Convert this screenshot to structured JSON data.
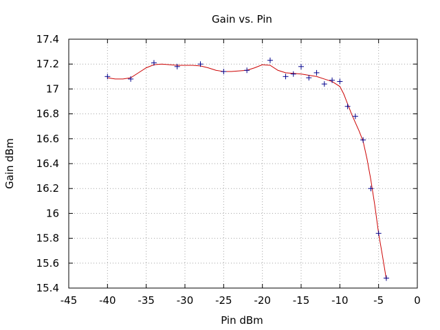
{
  "chart_data": {
    "type": "scatter",
    "title": "Gain vs. Pin",
    "xlabel": "Pin dBm",
    "ylabel": "Gain dBm",
    "xlim": [
      -45,
      0
    ],
    "ylim": [
      15.4,
      17.4
    ],
    "x_ticks": [
      -45,
      -40,
      -35,
      -30,
      -25,
      -20,
      -15,
      -10,
      -5,
      0
    ],
    "y_ticks": [
      15.4,
      15.6,
      15.8,
      16,
      16.2,
      16.4,
      16.6,
      16.8,
      17,
      17.2,
      17.4
    ],
    "grid": true,
    "colors": {
      "points": "#00008b",
      "fit": "#cc0000"
    },
    "series": [
      {
        "kind": "points",
        "marker": "plus",
        "x": [
          -40,
          -37,
          -34,
          -31,
          -28,
          -25,
          -22,
          -19,
          -17,
          -16,
          -15,
          -14,
          -13,
          -12,
          -11,
          -10,
          -9,
          -8,
          -7,
          -6,
          -5,
          -4
        ],
        "y": [
          17.1,
          17.08,
          17.21,
          17.18,
          17.2,
          17.14,
          17.15,
          17.23,
          17.1,
          17.12,
          17.18,
          17.09,
          17.13,
          17.04,
          17.07,
          17.06,
          16.86,
          16.78,
          16.59,
          16.2,
          15.84,
          15.48
        ]
      },
      {
        "kind": "fit-line",
        "x": [
          -40,
          -39,
          -38,
          -37,
          -36,
          -35,
          -34,
          -33,
          -32,
          -31,
          -30,
          -29,
          -28,
          -27,
          -26,
          -25,
          -24,
          -23,
          -22,
          -21,
          -20,
          -19,
          -18,
          -17,
          -16,
          -15,
          -14,
          -13,
          -12,
          -11,
          -10,
          -9.5,
          -9,
          -8.5,
          -8,
          -7.5,
          -7,
          -6.5,
          -6,
          -5.5,
          -5,
          -4.5,
          -4
        ],
        "y": [
          17.09,
          17.08,
          17.08,
          17.09,
          17.13,
          17.17,
          17.195,
          17.2,
          17.195,
          17.19,
          17.19,
          17.19,
          17.185,
          17.17,
          17.15,
          17.14,
          17.14,
          17.145,
          17.15,
          17.17,
          17.195,
          17.19,
          17.15,
          17.13,
          17.125,
          17.12,
          17.11,
          17.1,
          17.08,
          17.06,
          17.02,
          16.96,
          16.88,
          16.8,
          16.73,
          16.66,
          16.58,
          16.44,
          16.27,
          16.07,
          15.84,
          15.66,
          15.47
        ]
      }
    ]
  }
}
